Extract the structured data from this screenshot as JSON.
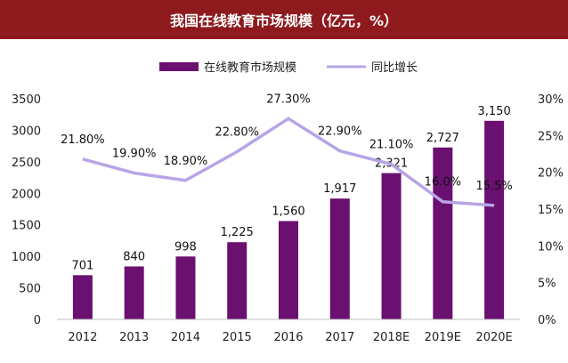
{
  "chart_data": {
    "type": "bar",
    "title": "我国在线教育市场规模（亿元，%）",
    "categories": [
      "2012",
      "2013",
      "2014",
      "2015",
      "2016",
      "2017",
      "2018E",
      "2019E",
      "2020E"
    ],
    "series": [
      {
        "name": "在线教育市场规模",
        "type": "bar",
        "axis": "left",
        "values": [
          701,
          840,
          998,
          1225,
          1560,
          1917,
          2321,
          2727,
          3150
        ],
        "labels": [
          "701",
          "840",
          "998",
          "1,225",
          "1,560",
          "1,917",
          "2,321",
          "2,727",
          "3,150"
        ]
      },
      {
        "name": "同比增长",
        "type": "line",
        "axis": "right",
        "values": [
          21.8,
          19.9,
          18.9,
          22.8,
          27.3,
          22.9,
          21.1,
          16.0,
          15.5
        ],
        "labels": [
          "21.80%",
          "19.90%",
          "18.90%",
          "22.80%",
          "27.30%",
          "22.90%",
          "21.10%",
          "16.0%",
          "15.5%"
        ]
      }
    ],
    "ylim": [
      0,
      3500
    ],
    "y_ticks": [
      "0",
      "500",
      "1000",
      "1500",
      "2000",
      "2500",
      "3000",
      "3500"
    ],
    "y2lim": [
      0,
      30
    ],
    "y2_ticks": [
      "0%",
      "5%",
      "10%",
      "15%",
      "20%",
      "25%",
      "30%"
    ],
    "grid": false,
    "legend_position": "top-center",
    "colors": {
      "bar": "#6a1070",
      "line": "#b7a4e6",
      "title_bg": "#8e1a1e",
      "title_text": "#ffffff"
    }
  }
}
